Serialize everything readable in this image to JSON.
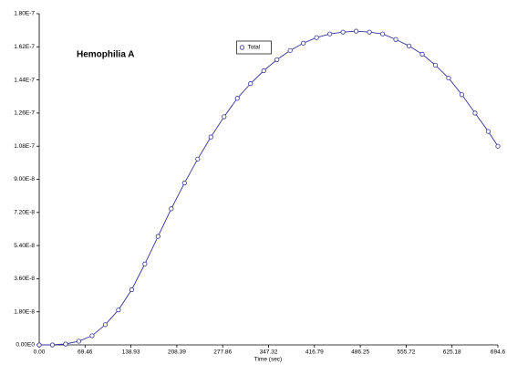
{
  "chart_data": {
    "type": "scatter-line",
    "annotation": "Hemophilia A",
    "xlabel": "Time (sec)",
    "x": [
      0,
      20,
      40,
      60,
      80,
      100,
      120,
      140,
      160,
      180,
      200,
      220,
      240,
      260,
      280,
      300,
      320,
      340,
      360,
      380,
      400,
      420,
      440,
      460,
      480,
      500,
      520,
      540,
      560,
      580,
      600,
      620,
      640,
      660,
      680,
      694.6
    ],
    "series": [
      {
        "name": "Total",
        "color": "#333399",
        "values": [
          0,
          0,
          5e-10,
          2e-09,
          5e-09,
          1.1e-08,
          1.9e-08,
          3e-08,
          4.4e-08,
          5.9e-08,
          7.4e-08,
          8.8e-08,
          1.01e-07,
          1.13e-07,
          1.24e-07,
          1.34e-07,
          1.42e-07,
          1.49e-07,
          1.55e-07,
          1.6e-07,
          1.64e-07,
          1.67e-07,
          1.69e-07,
          1.7e-07,
          1.705e-07,
          1.7e-07,
          1.69e-07,
          1.66e-07,
          1.625e-07,
          1.58e-07,
          1.52e-07,
          1.45e-07,
          1.36e-07,
          1.26e-07,
          1.16e-07,
          1.08e-07
        ]
      }
    ],
    "xlim": [
      0,
      694.6
    ],
    "ylim": [
      0,
      1.8e-07
    ],
    "xticks": [
      {
        "value": 0,
        "label": "0.00"
      },
      69.46,
      138.93,
      208.39,
      277.86,
      347.32,
      416.79,
      486.25,
      555.72,
      625.18,
      694.6
    ],
    "yticks": [
      {
        "value": 0,
        "label": "0.00E0"
      },
      {
        "value": 1.8e-08,
        "label": "1.80E-8"
      },
      {
        "value": 3.6e-08,
        "label": "3.60E-8"
      },
      {
        "value": 5.4e-08,
        "label": "5.40E-8"
      },
      {
        "value": 7.2e-08,
        "label": "7.20E-8"
      },
      {
        "value": 9e-08,
        "label": "9.00E-8"
      },
      {
        "value": 1.08e-07,
        "label": "1.08E-7"
      },
      {
        "value": 1.26e-07,
        "label": "1.26E-7"
      },
      {
        "value": 1.44e-07,
        "label": "1.44E-7"
      },
      {
        "value": 1.62e-07,
        "label": "1.62E-7"
      },
      {
        "value": 1.8e-07,
        "label": "1.80E-7"
      }
    ],
    "grid": false,
    "legend": "upper center"
  }
}
